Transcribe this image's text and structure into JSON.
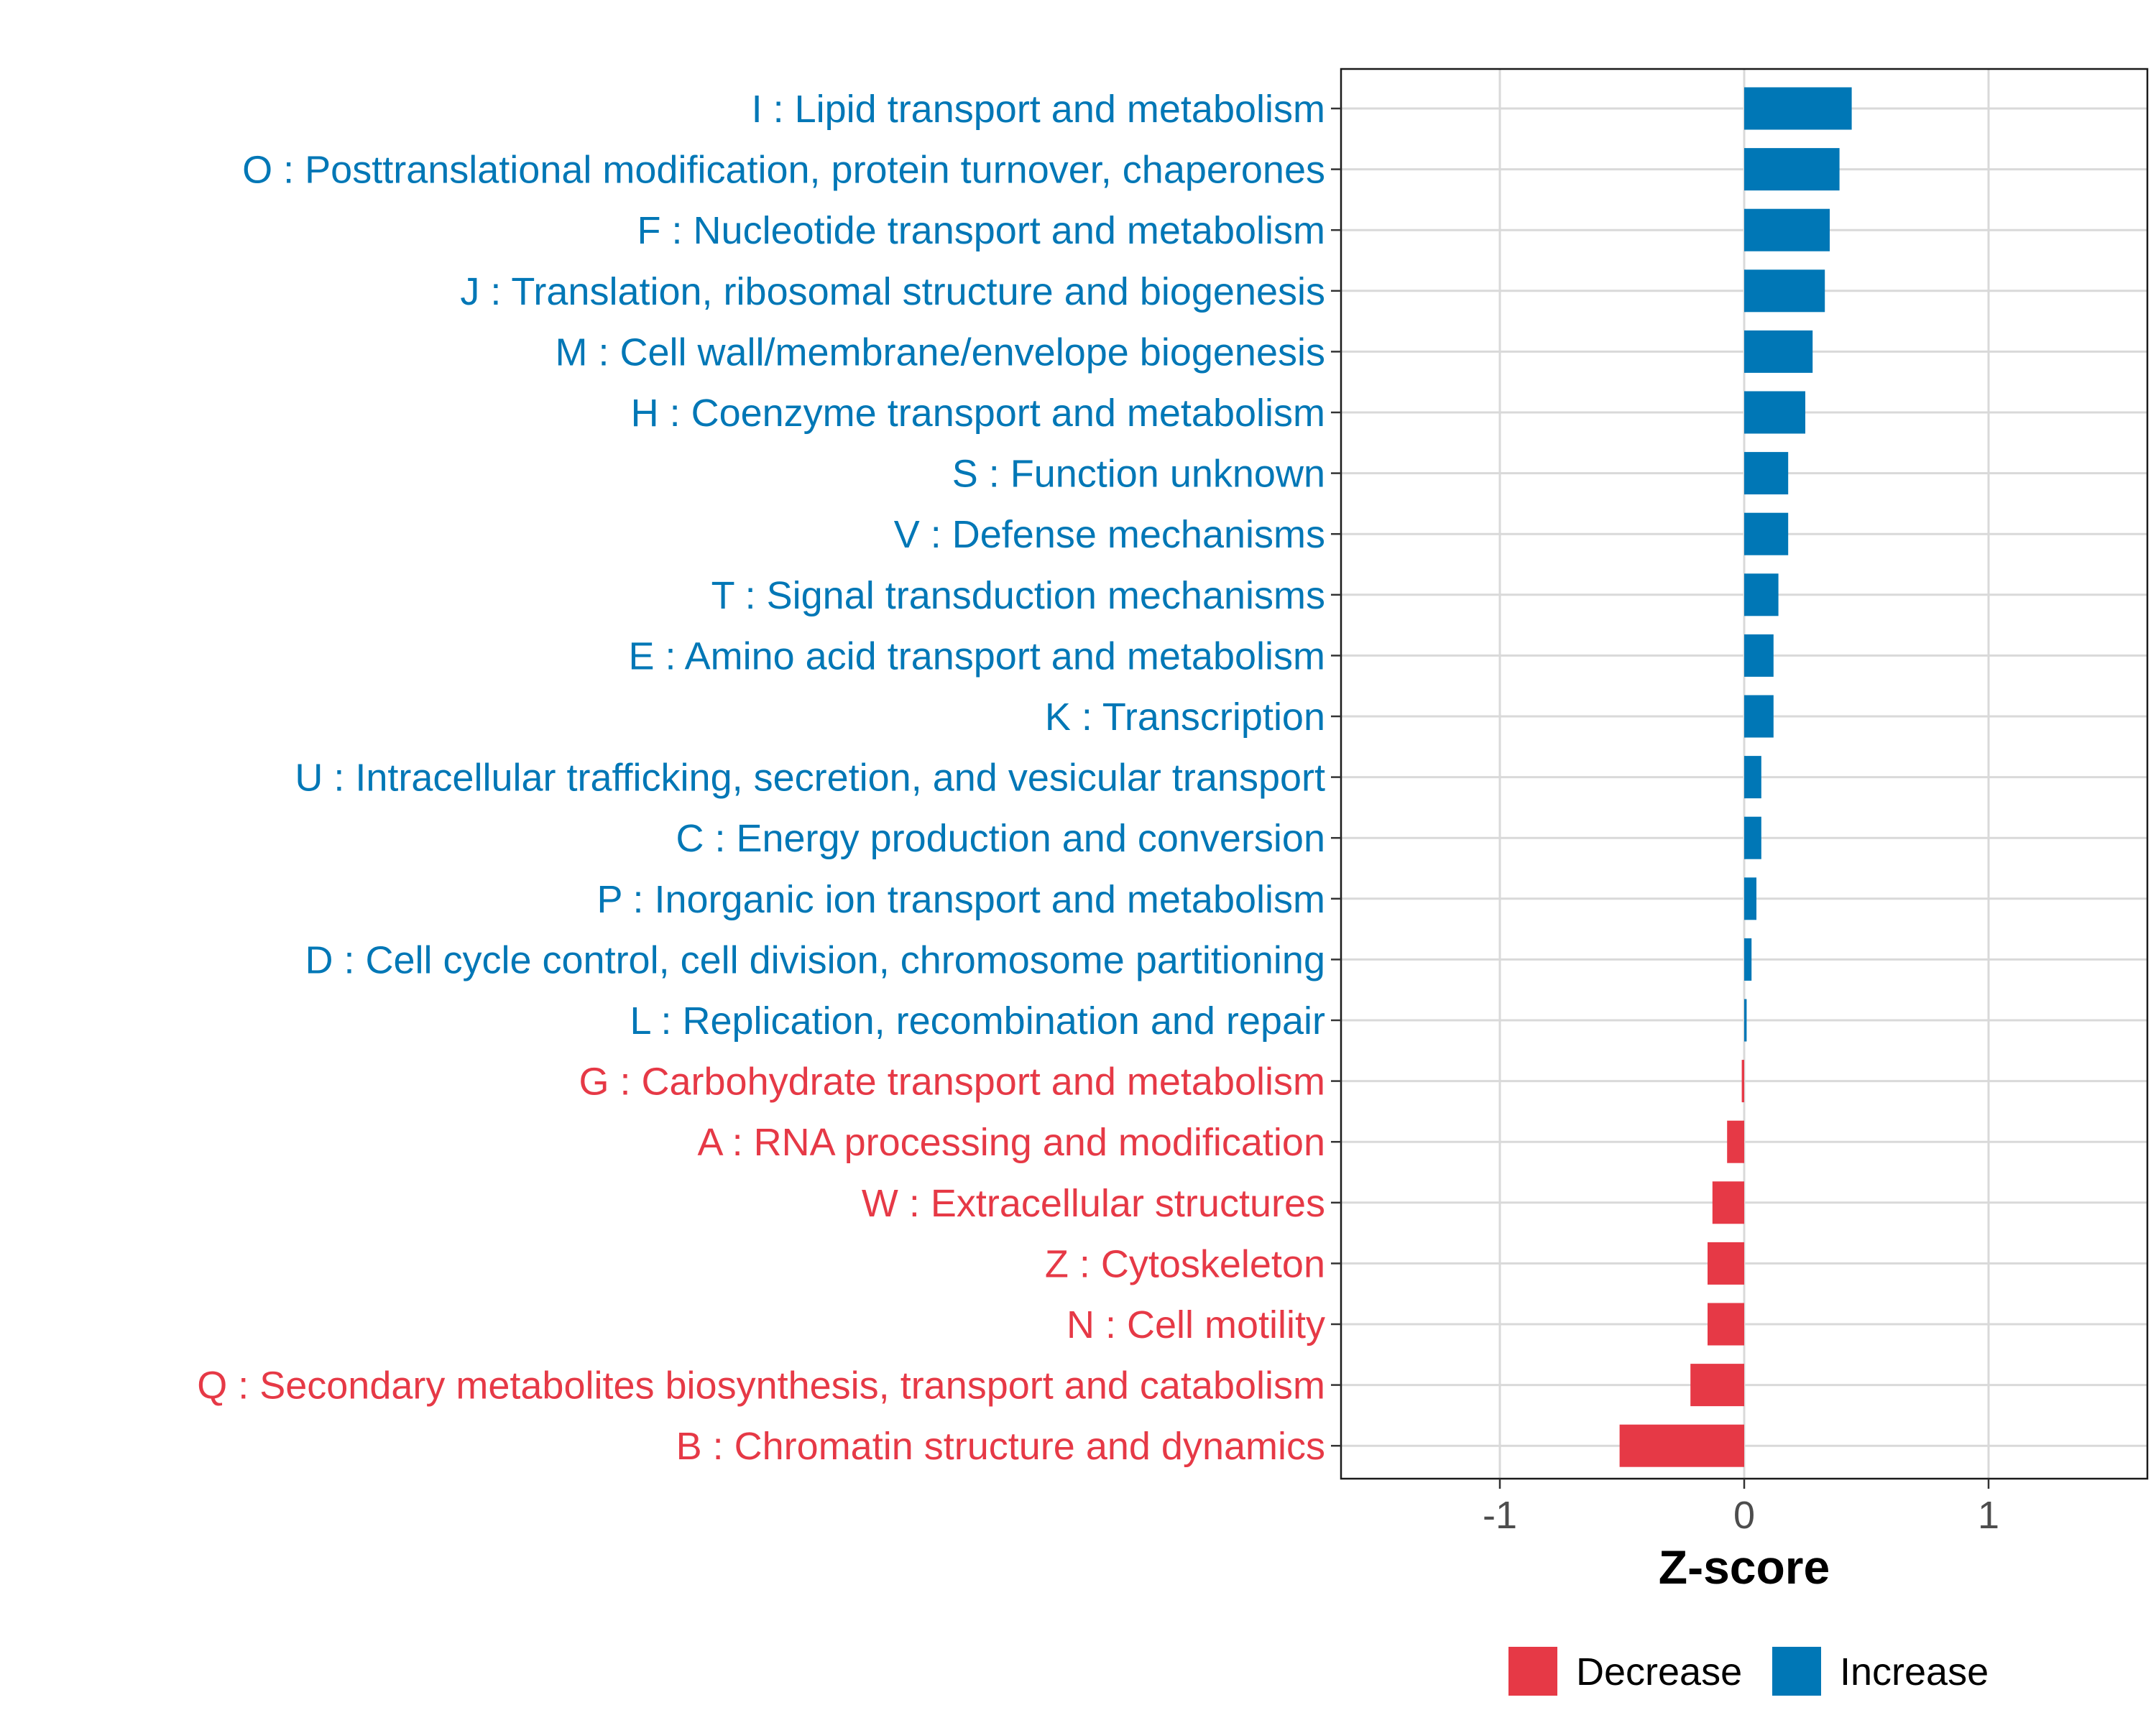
{
  "chart_data": {
    "type": "bar",
    "orientation": "horizontal",
    "xlabel": "Z-score",
    "xlim": [
      -1.65,
      1.65
    ],
    "xticks": [
      -1,
      0,
      1
    ],
    "xtick_labels": [
      "-1",
      "0",
      "1"
    ],
    "grid": true,
    "legend": {
      "position": "bottom",
      "entries": [
        {
          "label": "Decrease",
          "color": "#e63946"
        },
        {
          "label": "Increase",
          "color": "#0077b6"
        }
      ]
    },
    "categories": [
      {
        "label": "I : Lipid transport and metabolism",
        "value": 0.44,
        "group": "Increase"
      },
      {
        "label": "O : Posttranslational modification, protein turnover, chaperones",
        "value": 0.39,
        "group": "Increase"
      },
      {
        "label": "F : Nucleotide transport and metabolism",
        "value": 0.35,
        "group": "Increase"
      },
      {
        "label": "J : Translation, ribosomal structure and biogenesis",
        "value": 0.33,
        "group": "Increase"
      },
      {
        "label": "M : Cell wall/membrane/envelope biogenesis",
        "value": 0.28,
        "group": "Increase"
      },
      {
        "label": "H : Coenzyme transport and metabolism",
        "value": 0.25,
        "group": "Increase"
      },
      {
        "label": "S : Function unknown",
        "value": 0.18,
        "group": "Increase"
      },
      {
        "label": "V : Defense mechanisms",
        "value": 0.18,
        "group": "Increase"
      },
      {
        "label": "T : Signal transduction mechanisms",
        "value": 0.14,
        "group": "Increase"
      },
      {
        "label": "E : Amino acid transport and metabolism",
        "value": 0.12,
        "group": "Increase"
      },
      {
        "label": "K : Transcription",
        "value": 0.12,
        "group": "Increase"
      },
      {
        "label": "U : Intracellular trafficking, secretion, and vesicular transport",
        "value": 0.07,
        "group": "Increase"
      },
      {
        "label": "C : Energy production and conversion",
        "value": 0.07,
        "group": "Increase"
      },
      {
        "label": "P : Inorganic ion transport and metabolism",
        "value": 0.05,
        "group": "Increase"
      },
      {
        "label": "D : Cell cycle control, cell division, chromosome partitioning",
        "value": 0.03,
        "group": "Increase"
      },
      {
        "label": "L : Replication, recombination and repair",
        "value": 0.01,
        "group": "Increase"
      },
      {
        "label": "G : Carbohydrate transport and metabolism",
        "value": -0.01,
        "group": "Decrease"
      },
      {
        "label": "A : RNA processing and modification",
        "value": -0.07,
        "group": "Decrease"
      },
      {
        "label": "W : Extracellular structures",
        "value": -0.13,
        "group": "Decrease"
      },
      {
        "label": "Z : Cytoskeleton",
        "value": -0.15,
        "group": "Decrease"
      },
      {
        "label": "N : Cell motility",
        "value": -0.15,
        "group": "Decrease"
      },
      {
        "label": "Q : Secondary metabolites biosynthesis, transport and catabolism",
        "value": -0.22,
        "group": "Decrease"
      },
      {
        "label": "B : Chromatin structure and dynamics",
        "value": -0.51,
        "group": "Decrease"
      }
    ]
  }
}
